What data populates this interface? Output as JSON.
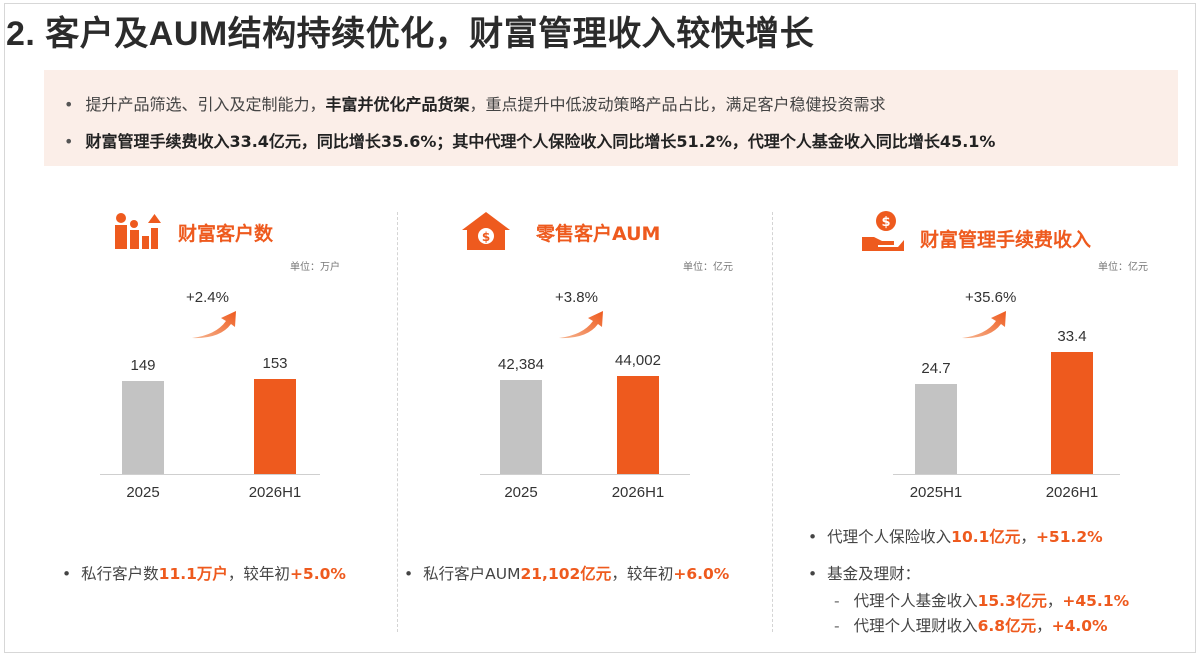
{
  "title": "2. 客户及AUM结构持续优化，财富管理收入较快增长",
  "summary": {
    "line1": {
      "prefix": "提升产品筛选、引入及定制能力，",
      "bold": "丰富并优化产品货架",
      "suffix": "，重点提升中低波动策略产品占比，满足客户稳健投资需求"
    },
    "line2": "财富管理手续费收入33.4亿元，同比增长35.6%；其中代理个人保险收入同比增长51.2%，代理个人基金收入同比增长45.1%"
  },
  "panels": [
    {
      "title": "财富客户数",
      "icon": "people-growth-icon",
      "unit": "单位：万户",
      "growth": "+2.4%",
      "chart_data": {
        "type": "bar",
        "categories": [
          "2025",
          "2026H1"
        ],
        "values": [
          149,
          153
        ]
      },
      "value_labels": [
        "149",
        "153"
      ]
    },
    {
      "title": "零售客户AUM",
      "icon": "house-money-icon",
      "unit": "单位：亿元",
      "growth": "+3.8%",
      "chart_data": {
        "type": "bar",
        "categories": [
          "2025",
          "2026H1"
        ],
        "values": [
          42384,
          44002
        ]
      },
      "value_labels": [
        "42,384",
        "44,002"
      ]
    },
    {
      "title": "财富管理手续费收入",
      "icon": "hand-coin-icon",
      "unit": "单位：亿元",
      "growth": "+35.6%",
      "chart_data": {
        "type": "bar",
        "categories": [
          "2025H1",
          "2026H1"
        ],
        "values": [
          24.7,
          33.4
        ]
      },
      "value_labels": [
        "24.7",
        "33.4"
      ]
    }
  ],
  "notes": {
    "p1": {
      "a": "私行客户数",
      "b": "11.1万户",
      "c": "，较年初",
      "d": "+5.0%"
    },
    "p2": {
      "a": "私行客户AUM",
      "b": "21,102亿元",
      "c": "，较年初",
      "d": "+6.0%"
    },
    "p3_1": {
      "a": "代理个人保险收入",
      "b": "10.1亿元",
      "c": "，",
      "d": "+51.2%"
    },
    "p3_2": "基金及理财：",
    "p3_3": {
      "dash": "-",
      "a": "代理个人基金收入",
      "b": "15.3亿元",
      "c": "，",
      "d": "+45.1%"
    },
    "p3_4": {
      "dash": "-",
      "a": "代理个人理财收入",
      "b": "6.8亿元",
      "c": "，",
      "d": "+4.0%"
    }
  },
  "colors": {
    "accent": "#ee5a1e",
    "grey_bar": "#c3c3c3",
    "summary_bg": "#fbeee8"
  }
}
